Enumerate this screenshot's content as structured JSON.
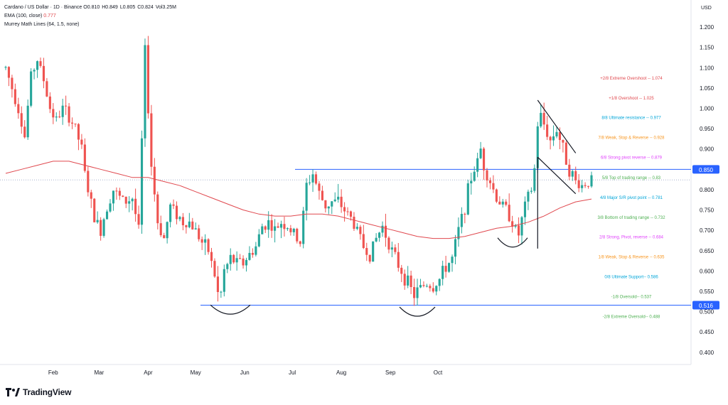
{
  "header": {
    "title": "Cardano / US Dollar · 1D · Binance",
    "ohlc": [
      {
        "k": "O",
        "v": "0.810"
      },
      {
        "k": "H",
        "v": "0.849"
      },
      {
        "k": "L",
        "v": "0.805"
      },
      {
        "k": "C",
        "v": "0.824"
      },
      {
        "k": "Vol",
        "v": "3.25M"
      }
    ],
    "ema_label": "EMA (100, close)",
    "ema_value": "0.777",
    "murrey_label": "Murrey Math Lines (64, 1.5, none)"
  },
  "axis_unit": "USD",
  "brand": "TradingView",
  "colors": {
    "up": "#26a69a",
    "down": "#ef5350",
    "ema": "#e0484e",
    "hline": "#2962ff",
    "badge": "#2962ff",
    "trend": "#131722"
  },
  "chart_data": {
    "type": "candlestick",
    "symbol": "Cardano / US Dollar",
    "interval": "1D",
    "exchange": "Binance",
    "ylim": [
      0.37,
      1.235
    ],
    "y_ticks": [
      "1.200",
      "1.150",
      "1.100",
      "1.050",
      "1.000",
      "0.950",
      "0.900",
      "0.850",
      "0.800",
      "0.750",
      "0.700",
      "0.650",
      "0.600",
      "0.550",
      "0.500",
      "0.450",
      "0.400"
    ],
    "x_ticks": [
      "Feb",
      "Mar",
      "Apr",
      "May",
      "Jun",
      "Jul",
      "Aug",
      "Sep",
      "Oct"
    ],
    "price_badges": [
      "0.850",
      "0.516"
    ],
    "price_points": [
      [
        0,
        1.1
      ],
      [
        4,
        1.05
      ],
      [
        8,
        1.0
      ],
      [
        12,
        0.93
      ],
      [
        16,
        1.08
      ],
      [
        20,
        1.12
      ],
      [
        24,
        1.07
      ],
      [
        28,
        1.0
      ],
      [
        32,
        0.97
      ],
      [
        36,
        1.0
      ],
      [
        40,
        0.98
      ],
      [
        44,
        0.95
      ],
      [
        48,
        0.9
      ],
      [
        50,
        0.84
      ],
      [
        52,
        0.8
      ],
      [
        56,
        0.73
      ],
      [
        60,
        0.7
      ],
      [
        64,
        0.76
      ],
      [
        68,
        0.8
      ],
      [
        72,
        0.78
      ],
      [
        76,
        0.77
      ],
      [
        80,
        0.78
      ],
      [
        84,
        0.7
      ],
      [
        88,
        1.14
      ],
      [
        90,
        1.0
      ],
      [
        92,
        0.86
      ],
      [
        96,
        0.72
      ],
      [
        100,
        0.68
      ],
      [
        104,
        0.76
      ],
      [
        108,
        0.74
      ],
      [
        112,
        0.72
      ],
      [
        116,
        0.72
      ],
      [
        120,
        0.7
      ],
      [
        124,
        0.67
      ],
      [
        128,
        0.65
      ],
      [
        132,
        0.59
      ],
      [
        135,
        0.52
      ],
      [
        138,
        0.6
      ],
      [
        142,
        0.63
      ],
      [
        146,
        0.62
      ],
      [
        150,
        0.62
      ],
      [
        154,
        0.64
      ],
      [
        158,
        0.66
      ],
      [
        162,
        0.71
      ],
      [
        166,
        0.72
      ],
      [
        170,
        0.7
      ],
      [
        174,
        0.72
      ],
      [
        178,
        0.71
      ],
      [
        182,
        0.69
      ],
      [
        186,
        0.67
      ],
      [
        190,
        0.81
      ],
      [
        194,
        0.84
      ],
      [
        198,
        0.79
      ],
      [
        202,
        0.76
      ],
      [
        206,
        0.77
      ],
      [
        210,
        0.77
      ],
      [
        214,
        0.75
      ],
      [
        218,
        0.73
      ],
      [
        222,
        0.7
      ],
      [
        226,
        0.66
      ],
      [
        230,
        0.64
      ],
      [
        234,
        0.68
      ],
      [
        238,
        0.71
      ],
      [
        242,
        0.67
      ],
      [
        246,
        0.63
      ],
      [
        250,
        0.6
      ],
      [
        254,
        0.57
      ],
      [
        258,
        0.54
      ],
      [
        262,
        0.56
      ],
      [
        266,
        0.57
      ],
      [
        270,
        0.56
      ],
      [
        274,
        0.58
      ],
      [
        278,
        0.61
      ],
      [
        282,
        0.63
      ],
      [
        286,
        0.7
      ],
      [
        290,
        0.76
      ],
      [
        294,
        0.83
      ],
      [
        298,
        0.87
      ],
      [
        300,
        0.9
      ],
      [
        302,
        0.86
      ],
      [
        306,
        0.82
      ],
      [
        310,
        0.78
      ],
      [
        314,
        0.76
      ],
      [
        318,
        0.74
      ],
      [
        322,
        0.7
      ],
      [
        324,
        0.69
      ],
      [
        328,
        0.76
      ],
      [
        332,
        0.8
      ],
      [
        334,
        0.85
      ],
      [
        336,
        0.96
      ],
      [
        338,
        0.98
      ],
      [
        340,
        0.96
      ],
      [
        344,
        0.92
      ],
      [
        348,
        0.95
      ],
      [
        352,
        0.9
      ],
      [
        356,
        0.85
      ],
      [
        360,
        0.82
      ],
      [
        364,
        0.81
      ],
      [
        368,
        0.82
      ],
      [
        370,
        0.824
      ]
    ],
    "ema_points": [
      [
        0,
        0.84
      ],
      [
        10,
        0.85
      ],
      [
        20,
        0.86
      ],
      [
        30,
        0.87
      ],
      [
        40,
        0.87
      ],
      [
        50,
        0.86
      ],
      [
        60,
        0.85
      ],
      [
        70,
        0.84
      ],
      [
        80,
        0.83
      ],
      [
        90,
        0.83
      ],
      [
        100,
        0.82
      ],
      [
        110,
        0.81
      ],
      [
        120,
        0.795
      ],
      [
        130,
        0.78
      ],
      [
        140,
        0.765
      ],
      [
        150,
        0.75
      ],
      [
        160,
        0.74
      ],
      [
        170,
        0.735
      ],
      [
        180,
        0.735
      ],
      [
        190,
        0.74
      ],
      [
        200,
        0.74
      ],
      [
        210,
        0.735
      ],
      [
        220,
        0.725
      ],
      [
        230,
        0.715
      ],
      [
        240,
        0.705
      ],
      [
        250,
        0.695
      ],
      [
        260,
        0.685
      ],
      [
        270,
        0.68
      ],
      [
        280,
        0.68
      ],
      [
        290,
        0.685
      ],
      [
        300,
        0.695
      ],
      [
        310,
        0.705
      ],
      [
        320,
        0.71
      ],
      [
        330,
        0.72
      ],
      [
        340,
        0.735
      ],
      [
        350,
        0.755
      ],
      [
        360,
        0.77
      ],
      [
        370,
        0.777
      ]
    ],
    "murrey_levels": [
      {
        "label": "+2/8 Extreme Overshoot --  1.074",
        "price": 1.074,
        "color": "#e0484e"
      },
      {
        "label": "+1/8 Overshoot --  1.025",
        "price": 1.025,
        "color": "#e0484e"
      },
      {
        "label": "8/8 Ultimate resistance --  0.977",
        "price": 0.977,
        "color": "#00a5d8"
      },
      {
        "label": "7/8 Weak, Stop & Reverse --  0.928",
        "price": 0.928,
        "color": "#f7931a"
      },
      {
        "label": "6/8 Strong pivot reverse --  0.879",
        "price": 0.879,
        "color": "#e040fb"
      },
      {
        "label": "5/8 Top of trading range --  0.83",
        "price": 0.83,
        "color": "#4caf50"
      },
      {
        "label": "4/8 Major S/R pivot point --  0.781",
        "price": 0.781,
        "color": "#00a5d8"
      },
      {
        "label": "3/8 Bottom of trading range --  0.732",
        "price": 0.732,
        "color": "#4caf50"
      },
      {
        "label": "2/8 Strong, Pivot, reverse --  0.684",
        "price": 0.684,
        "color": "#e040fb"
      },
      {
        "label": "1/8 Weak, Stop & Reverse --  0.635",
        "price": 0.635,
        "color": "#f7931a"
      },
      {
        "label": "0/8 Ultimate Support--  0.586",
        "price": 0.586,
        "color": "#00a5d8"
      },
      {
        "label": "-1/8 Oversold--  0.537",
        "price": 0.537,
        "color": "#4caf50"
      },
      {
        "label": "-2/8 Extreme Oversold--  0.488",
        "price": 0.488,
        "color": "#4caf50"
      }
    ],
    "horizontal_lines": [
      0.85,
      0.516,
      0.824
    ]
  }
}
